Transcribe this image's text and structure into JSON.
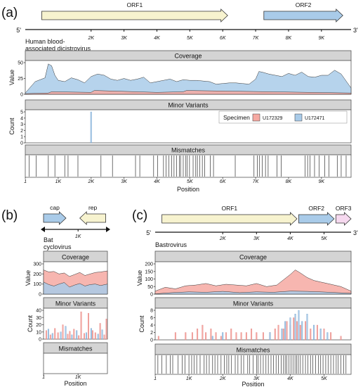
{
  "labels": {
    "a": "(a)",
    "b": "(b)",
    "c": "(c)"
  },
  "panel_a": {
    "genome_name": "Human blood-\nassociated dicistrovirus",
    "five_prime": "5'",
    "three_prime": "3'",
    "genes": [
      {
        "name": "ORF1",
        "start": 500,
        "end": 6150,
        "color": "#f7f3cf"
      },
      {
        "name": "ORF2",
        "start": 7250,
        "end": 9650,
        "color": "#a9cbe9"
      }
    ],
    "genome_length": 9900,
    "genome_ticks": [
      "2K",
      "3K",
      "4K",
      "5K",
      "6K",
      "7K",
      "8K",
      "9K"
    ],
    "genome_tick_values": [
      2000,
      3000,
      4000,
      5000,
      6000,
      7000,
      8000,
      9000
    ],
    "legend_title": "Specimen",
    "legend": [
      {
        "name": "U172329",
        "color": "#f6a9a2"
      },
      {
        "name": "U172471",
        "color": "#a9cbe9"
      }
    ]
  },
  "panel_b": {
    "genome_name": "Bat\ncyclovirus",
    "genes": [
      {
        "name": "cap",
        "start": 0,
        "end": 650,
        "dir": "fwd",
        "color": "#a9cbe9"
      },
      {
        "name": "rep",
        "start": 1050,
        "end": 1800,
        "dir": "rev",
        "color": "#f7f3cf"
      }
    ],
    "genome_length": 1850,
    "genome_ticks": [
      "1K"
    ],
    "genome_tick_values": [
      1000
    ]
  },
  "panel_c": {
    "genome_name": "Bastrovirus",
    "five_prime": "5'",
    "three_prime": "3'",
    "genes": [
      {
        "name": "ORF1",
        "start": 200,
        "end": 4200,
        "color": "#f7f3cf"
      },
      {
        "name": "ORF2",
        "start": 4250,
        "end": 5300,
        "color": "#a9cbe9"
      },
      {
        "name": "ORF3",
        "start": 5350,
        "end": 5800,
        "color": "#f6d9ef"
      }
    ],
    "genome_length": 5800,
    "genome_ticks": [
      "2K",
      "3K",
      "4K",
      "5K"
    ],
    "genome_tick_values": [
      2000,
      3000,
      4000,
      5000
    ]
  },
  "chart_data": [
    {
      "type": "area",
      "panel": "a",
      "track": "Coverage",
      "title": "Coverage",
      "ylabel": "Value",
      "xlabel": "",
      "ylim": [
        0,
        50
      ],
      "yticks": [
        "0",
        "25",
        "50"
      ],
      "xlim": [
        1,
        9900
      ],
      "series": [
        {
          "color": "#a9cbe9",
          "x": [
            0,
            300,
            600,
            700,
            800,
            900,
            1000,
            1200,
            1400,
            1600,
            1800,
            2000,
            2200,
            2400,
            2600,
            2800,
            3000,
            3200,
            3400,
            3600,
            3800,
            4000,
            4200,
            4400,
            4600,
            4800,
            5000,
            5200,
            5400,
            5600,
            5800,
            6000,
            6200,
            6400,
            6600,
            6800,
            7000,
            7100,
            7200,
            7400,
            7600,
            7800,
            8000,
            8200,
            8400,
            8600,
            8800,
            9000,
            9200,
            9400,
            9600,
            9900
          ],
          "values": [
            2,
            20,
            26,
            48,
            45,
            30,
            22,
            20,
            26,
            23,
            18,
            28,
            32,
            30,
            24,
            22,
            25,
            22,
            24,
            27,
            18,
            20,
            22,
            24,
            20,
            23,
            22,
            22,
            21,
            20,
            16,
            17,
            18,
            18,
            17,
            16,
            24,
            36,
            35,
            32,
            30,
            28,
            33,
            30,
            35,
            28,
            27,
            30,
            30,
            38,
            32,
            10
          ]
        },
        {
          "color": "#f6a9a2",
          "x": [
            0,
            700,
            800,
            2000,
            2100,
            4000,
            4800,
            4900,
            9900
          ],
          "values": [
            1,
            2,
            4,
            3,
            6,
            3,
            4,
            6,
            2
          ]
        }
      ]
    },
    {
      "type": "bar",
      "panel": "a",
      "track": "Minor Variants",
      "title": "Minor Variants",
      "ylabel": "Count",
      "ylim": [
        0,
        5
      ],
      "yticks": [
        "0",
        "1",
        "2",
        "3",
        "4",
        "5"
      ],
      "xlim": [
        1,
        9900
      ],
      "series": [
        {
          "name": "U172471",
          "color": "#a9cbe9",
          "x": [
            2000
          ],
          "values": [
            5
          ]
        }
      ]
    },
    {
      "type": "bar",
      "panel": "a",
      "track": "Mismatches",
      "title": "Mismatches",
      "xlabel": "Position",
      "xlim": [
        1,
        9900
      ],
      "xticks": [
        "1",
        "1K",
        "2K",
        "3K",
        "4K",
        "5K",
        "6K",
        "7K",
        "8K",
        "9K"
      ],
      "xtick_values": [
        1,
        1000,
        2000,
        3000,
        4000,
        5000,
        6000,
        7000,
        8000,
        9000
      ],
      "positions": [
        120,
        330,
        700,
        900,
        1200,
        1300,
        1600,
        2300,
        2650,
        3350,
        3480,
        3900,
        4020,
        4200,
        4280,
        4360,
        4450,
        4520,
        4600,
        4680,
        4720,
        4800,
        4870,
        4920,
        4990,
        5100,
        5180,
        5230,
        5300,
        5380,
        5450,
        5620,
        5720,
        6380,
        6950,
        7050,
        7120,
        7200,
        7300,
        7380,
        7650,
        7780,
        8500,
        8580,
        8650,
        8790,
        8930,
        9100,
        9230,
        9480,
        9600,
        9750
      ]
    },
    {
      "type": "area",
      "panel": "b",
      "track": "Coverage",
      "title": "Coverage",
      "ylabel": "Value",
      "ylim": [
        0,
        300
      ],
      "yticks": [
        "0",
        "100",
        "200",
        "300"
      ],
      "xlim": [
        1,
        1850
      ],
      "series": [
        {
          "color": "#f6a9a2",
          "x": [
            0,
            150,
            300,
            450,
            600,
            750,
            900,
            1050,
            1200,
            1350,
            1500,
            1650,
            1850
          ],
          "values": [
            240,
            220,
            225,
            200,
            210,
            175,
            195,
            215,
            185,
            200,
            215,
            220,
            230
          ]
        },
        {
          "color": "#a9cbe9",
          "x": [
            0,
            150,
            300,
            450,
            600,
            750,
            900,
            1050,
            1200,
            1350,
            1500,
            1650,
            1850
          ],
          "values": [
            120,
            95,
            80,
            100,
            115,
            70,
            90,
            105,
            80,
            95,
            100,
            85,
            100
          ]
        }
      ]
    },
    {
      "type": "bar",
      "panel": "b",
      "track": "Minor Variants",
      "title": "Minor Variants",
      "ylabel": "Count",
      "ylim": [
        0,
        40
      ],
      "yticks": [
        "0",
        "10",
        "20",
        "30",
        "40"
      ],
      "xlim": [
        1,
        1850
      ],
      "series": [
        {
          "name": "U172329",
          "color": "#f6a9a2",
          "x": [
            80,
            200,
            330,
            420,
            560,
            700,
            760,
            880,
            1020,
            1090,
            1180,
            1300,
            1420,
            1500,
            1640,
            1760,
            1820
          ],
          "values": [
            12,
            6,
            15,
            9,
            20,
            7,
            11,
            14,
            5,
            38,
            8,
            36,
            12,
            9,
            22,
            6,
            28
          ]
        },
        {
          "name": "U172471",
          "color": "#a9cbe9",
          "x": [
            140,
            260,
            500,
            640,
            820,
            960,
            1240,
            1380,
            1580,
            1700
          ],
          "values": [
            14,
            8,
            10,
            18,
            6,
            12,
            9,
            15,
            7,
            13
          ]
        }
      ]
    },
    {
      "type": "bar",
      "panel": "b",
      "track": "Mismatches",
      "title": "Mismatches",
      "xlabel": "Position",
      "xlim": [
        1,
        1850
      ],
      "xticks": [
        "1",
        "1K"
      ],
      "xtick_values": [
        1,
        1000
      ],
      "positions": []
    },
    {
      "type": "area",
      "panel": "c",
      "track": "Coverage",
      "title": "Coverage",
      "ylabel": "Value",
      "ylim": [
        0,
        200
      ],
      "yticks": [
        "0",
        "50",
        "100",
        "150",
        "200"
      ],
      "xlim": [
        1,
        5800
      ],
      "series": [
        {
          "color": "#f6a9a2",
          "x": [
            0,
            300,
            600,
            900,
            1200,
            1500,
            1800,
            2100,
            2400,
            2700,
            3000,
            3300,
            3600,
            3800,
            4000,
            4150,
            4300,
            4500,
            4700,
            4900,
            5100,
            5300,
            5500,
            5800
          ],
          "values": [
            20,
            45,
            35,
            55,
            60,
            70,
            55,
            65,
            60,
            55,
            70,
            50,
            60,
            95,
            130,
            160,
            140,
            110,
            90,
            80,
            70,
            60,
            50,
            20
          ]
        },
        {
          "color": "#a9cbe9",
          "x": [
            0,
            500,
            1000,
            1500,
            2000,
            2500,
            3000,
            3500,
            4000,
            4500,
            5000,
            5800
          ],
          "values": [
            2,
            10,
            15,
            12,
            18,
            10,
            15,
            12,
            20,
            18,
            14,
            5
          ]
        }
      ]
    },
    {
      "type": "bar",
      "panel": "c",
      "track": "Minor Variants",
      "title": "Minor Variants",
      "ylabel": "Count",
      "ylim": [
        0,
        8
      ],
      "yticks": [
        "0",
        "2",
        "4",
        "6",
        "8"
      ],
      "xlim": [
        1,
        5800
      ],
      "series": [
        {
          "name": "U172329",
          "color": "#f6a9a2",
          "x": [
            100,
            600,
            900,
            1100,
            1250,
            1400,
            1500,
            1650,
            1800,
            1950,
            2100,
            2250,
            2400,
            2550,
            2700,
            2850,
            3000,
            3200,
            3400,
            3550,
            3650,
            3800,
            3900,
            4000,
            4100,
            4200,
            4300,
            4450,
            4600,
            4800,
            5000,
            5200,
            5500
          ],
          "values": [
            1,
            2,
            2,
            2,
            3,
            4,
            2,
            3,
            2,
            1,
            2,
            3,
            2,
            2,
            2,
            3,
            2,
            2,
            2,
            3,
            4,
            3,
            5,
            4,
            6,
            5,
            4,
            5,
            3,
            4,
            3,
            2,
            1
          ]
        },
        {
          "name": "U172471",
          "color": "#a9cbe9",
          "x": [
            1700,
            2000,
            3400,
            3750,
            3850,
            4000,
            4150,
            4250,
            4350,
            4500,
            4700,
            4900,
            5100
          ],
          "values": [
            1,
            2,
            2,
            3,
            5,
            6,
            7,
            8,
            5,
            7,
            4,
            3,
            2
          ]
        }
      ]
    },
    {
      "type": "bar",
      "panel": "c",
      "track": "Mismatches",
      "title": "Mismatches",
      "xlabel": "Position",
      "xlim": [
        1,
        5800
      ],
      "xticks": [
        "1",
        "1K",
        "2K",
        "3K",
        "4K",
        "5K"
      ],
      "xtick_values": [
        1,
        1000,
        2000,
        3000,
        4000,
        5000
      ],
      "positions": [
        80,
        200,
        330,
        450,
        520,
        680,
        800,
        880,
        1000,
        1080,
        1150,
        1230,
        1330,
        1450,
        1520,
        1600,
        1700,
        1770,
        1850,
        1950,
        2050,
        2120,
        2180,
        2260,
        2370,
        2450,
        2550,
        2620,
        2740,
        2800,
        2900,
        3000,
        3050,
        3120,
        3200,
        3280,
        3350,
        3430,
        3500,
        3580,
        3650,
        3730,
        3800,
        3850,
        3900,
        3960,
        4020,
        4080,
        4140,
        4190,
        4240,
        4300,
        4370,
        4450,
        4520,
        4600,
        4670,
        4750,
        4830,
        4900,
        4970,
        5050,
        5120,
        5200,
        5280,
        5360,
        5420,
        5500,
        5580,
        5650
      ]
    }
  ]
}
